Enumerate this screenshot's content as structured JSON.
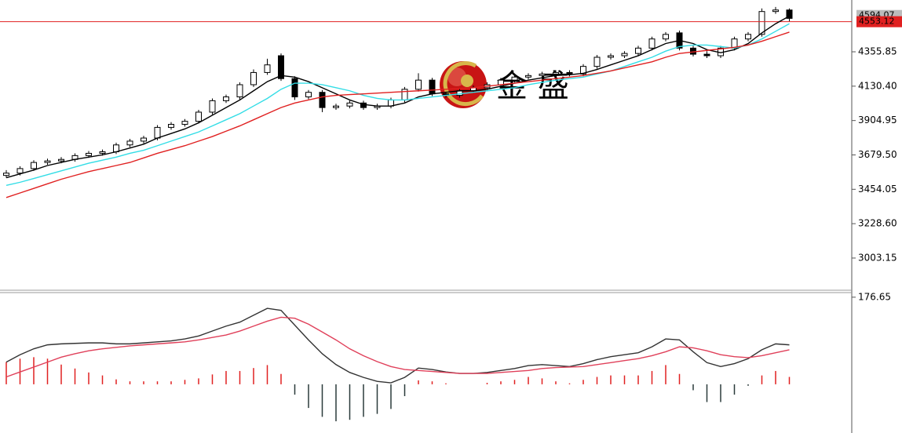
{
  "chart_data": [
    {
      "type": "candlestick",
      "watermark": "金 盛",
      "open": [
        3545,
        3560,
        3590,
        3630,
        3640,
        3650,
        3675,
        3690,
        3700,
        3745,
        3770,
        3790,
        3860,
        3880,
        3900,
        3960,
        4035,
        4060,
        4140,
        4220,
        4330,
        4180,
        4060,
        4090,
        3990,
        4000,
        4020,
        3990,
        4000,
        4040,
        4110,
        4170,
        4080,
        4070,
        4100,
        4120,
        4140,
        4170,
        4190,
        4200,
        4210,
        4220,
        4210,
        4260,
        4320,
        4330,
        4345,
        4380,
        4440,
        4480,
        4380,
        4340,
        4330,
        4380,
        4440,
        4470,
        4620,
        4630
      ],
      "high": [
        3580,
        3605,
        3645,
        3655,
        3665,
        3690,
        3705,
        3715,
        3760,
        3785,
        3805,
        3875,
        3895,
        3915,
        3975,
        4050,
        4075,
        4155,
        4240,
        4310,
        4345,
        4195,
        4105,
        4105,
        4015,
        4035,
        4035,
        4015,
        4055,
        4125,
        4215,
        4185,
        4095,
        4115,
        4135,
        4155,
        4185,
        4205,
        4215,
        4225,
        4235,
        4235,
        4275,
        4335,
        4345,
        4360,
        4395,
        4455,
        4485,
        4495,
        4395,
        4360,
        4395,
        4455,
        4485,
        4640,
        4650,
        4640
      ],
      "low": [
        3530,
        3545,
        3575,
        3615,
        3625,
        3635,
        3660,
        3675,
        3685,
        3730,
        3755,
        3775,
        3845,
        3865,
        3885,
        3945,
        4020,
        4045,
        4125,
        4205,
        4165,
        4040,
        4045,
        3960,
        3975,
        3985,
        3975,
        3975,
        3985,
        4025,
        4095,
        4065,
        4055,
        4055,
        4085,
        4105,
        4125,
        4155,
        4175,
        4185,
        4195,
        4195,
        4195,
        4245,
        4305,
        4315,
        4330,
        4365,
        4425,
        4365,
        4325,
        4315,
        4315,
        4365,
        4425,
        4455,
        4605,
        4555
      ],
      "close": [
        3560,
        3590,
        3630,
        3640,
        3650,
        3675,
        3690,
        3700,
        3745,
        3770,
        3790,
        3860,
        3880,
        3900,
        3960,
        4035,
        4060,
        4140,
        4220,
        4270,
        4180,
        4060,
        4090,
        3990,
        4000,
        4020,
        3990,
        4000,
        4040,
        4110,
        4170,
        4080,
        4070,
        4100,
        4120,
        4140,
        4170,
        4190,
        4200,
        4210,
        4220,
        4210,
        4260,
        4320,
        4330,
        4345,
        4380,
        4440,
        4470,
        4380,
        4340,
        4330,
        4380,
        4440,
        4470,
        4620,
        4630,
        4575
      ],
      "lines": [
        {
          "color": "#000000",
          "values": [
            3530,
            3555,
            3580,
            3610,
            3630,
            3650,
            3665,
            3680,
            3700,
            3725,
            3750,
            3790,
            3820,
            3850,
            3890,
            3940,
            3990,
            4040,
            4100,
            4160,
            4200,
            4190,
            4160,
            4120,
            4080,
            4040,
            4010,
            4000,
            4000,
            4020,
            4060,
            4080,
            4090,
            4100,
            4100,
            4110,
            4130,
            4150,
            4170,
            4185,
            4200,
            4205,
            4215,
            4240,
            4270,
            4300,
            4330,
            4370,
            4410,
            4430,
            4410,
            4370,
            4350,
            4370,
            4410,
            4480,
            4540,
            4590
          ]
        },
        {
          "color": "#33dde6",
          "values": [
            3480,
            3500,
            3525,
            3550,
            3575,
            3600,
            3625,
            3645,
            3665,
            3690,
            3710,
            3740,
            3770,
            3800,
            3830,
            3870,
            3910,
            3950,
            4000,
            4050,
            4110,
            4150,
            4150,
            4140,
            4120,
            4100,
            4070,
            4050,
            4040,
            4040,
            4050,
            4060,
            4070,
            4080,
            4090,
            4100,
            4110,
            4120,
            4140,
            4155,
            4170,
            4180,
            4190,
            4210,
            4230,
            4260,
            4290,
            4320,
            4360,
            4390,
            4400,
            4400,
            4390,
            4380,
            4400,
            4440,
            4490,
            4540
          ]
        },
        {
          "color": "#e02020",
          "values": [
            3400,
            3430,
            3460,
            3490,
            3520,
            3545,
            3570,
            3590,
            3610,
            3630,
            3660,
            3690,
            3715,
            3740,
            3770,
            3800,
            3835,
            3870,
            3910,
            3950,
            3990,
            4020,
            4040,
            4060,
            4070,
            4075,
            4080,
            4085,
            4090,
            4095,
            4100,
            4105,
            4110,
            4115,
            4120,
            4130,
            4140,
            4150,
            4160,
            4170,
            4180,
            4190,
            4200,
            4215,
            4230,
            4250,
            4270,
            4290,
            4320,
            4345,
            4355,
            4365,
            4375,
            4385,
            4400,
            4425,
            4455,
            4485
          ]
        }
      ],
      "last_price": 4553.12,
      "prev_price": 4594.07,
      "ylim": [
        2792,
        4695.5
      ],
      "yticks": [
        {
          "value": 4355.85,
          "label": "4355.85"
        },
        {
          "value": 4130.4,
          "label": "4130.40"
        },
        {
          "value": 3904.95,
          "label": "3904.95"
        },
        {
          "value": 3679.5,
          "label": "3679.50"
        },
        {
          "value": 3454.05,
          "label": "3454.05"
        },
        {
          "value": 3228.6,
          "label": "3228.60"
        },
        {
          "value": 3003.15,
          "label": "3003.15"
        }
      ]
    },
    {
      "type": "macd",
      "lines": [
        {
          "color": "#333333",
          "values": [
            45,
            60,
            72,
            80,
            82,
            83,
            84,
            84,
            82,
            82,
            84,
            86,
            88,
            92,
            98,
            108,
            118,
            126,
            140,
            154,
            150,
            120,
            90,
            62,
            40,
            24,
            14,
            6,
            3,
            14,
            33,
            30,
            25,
            22,
            22,
            24,
            28,
            32,
            38,
            40,
            38,
            36,
            42,
            50,
            56,
            60,
            64,
            76,
            92,
            90,
            66,
            44,
            36,
            42,
            52,
            70,
            82,
            80
          ]
        },
        {
          "color": "#e0405a",
          "values": [
            15,
            25,
            35,
            45,
            55,
            62,
            68,
            72,
            75,
            78,
            80,
            82,
            84,
            86,
            90,
            95,
            100,
            108,
            118,
            128,
            136,
            134,
            122,
            106,
            90,
            72,
            58,
            46,
            36,
            30,
            28,
            26,
            24,
            22,
            22,
            22,
            24,
            26,
            28,
            32,
            34,
            35,
            36,
            40,
            44,
            48,
            52,
            58,
            66,
            76,
            74,
            68,
            60,
            56,
            54,
            58,
            64,
            70
          ]
        }
      ],
      "histogram": [
        45,
        52,
        55,
        52,
        40,
        32,
        24,
        18,
        10,
        6,
        6,
        6,
        6,
        9,
        12,
        20,
        27,
        27,
        33,
        39,
        21,
        -21,
        -48,
        -66,
        -75,
        -72,
        -66,
        -60,
        -50,
        -24,
        8,
        6,
        2,
        0,
        0,
        3,
        6,
        9,
        15,
        12,
        6,
        2,
        9,
        15,
        18,
        18,
        18,
        27,
        39,
        21,
        -12,
        -36,
        -36,
        -21,
        -3,
        18,
        27,
        15
      ],
      "up_color": "#e02020",
      "down_color": "#2a3a3a",
      "ylim": [
        -94,
        186
      ],
      "yticks": [
        176.65
      ]
    }
  ]
}
